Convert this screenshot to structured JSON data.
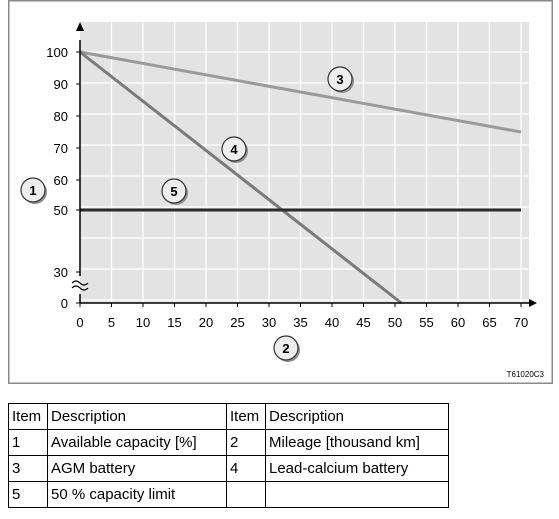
{
  "chart_data": {
    "type": "line",
    "x_ticks": [
      0,
      5,
      10,
      15,
      20,
      25,
      30,
      35,
      40,
      45,
      50,
      55,
      60,
      65,
      70
    ],
    "y_tick_labels": [
      "100",
      "90",
      "80",
      "70",
      "60",
      "50",
      "30",
      "0"
    ],
    "y_tick_values": [
      100,
      90,
      80,
      70,
      60,
      50,
      30,
      0
    ],
    "xlim": [
      0,
      70
    ],
    "y_axis_break": true,
    "grid": true,
    "series": [
      {
        "name": "3",
        "color": "#9a9a9a",
        "points": [
          [
            0,
            100
          ],
          [
            70,
            75
          ]
        ]
      },
      {
        "name": "4",
        "color": "#7a7a7a",
        "points": [
          [
            0,
            100
          ],
          [
            51,
            0
          ]
        ]
      },
      {
        "name": "5",
        "color": "#2b2b2b",
        "points": [
          [
            0,
            50
          ],
          [
            70,
            50
          ]
        ]
      }
    ],
    "callouts": [
      "1",
      "2",
      "3",
      "4",
      "5"
    ],
    "figure_code": "T61020C3"
  },
  "legend_table": {
    "headers": [
      "Item",
      "Description",
      "Item",
      "Description"
    ],
    "rows": [
      [
        "1",
        "Available capacity [%]",
        "2",
        "Mileage [thousand km]"
      ],
      [
        "3",
        "AGM battery",
        "4",
        "Lead-calcium battery"
      ],
      [
        "5",
        "50 % capacity limit",
        "",
        ""
      ]
    ]
  }
}
